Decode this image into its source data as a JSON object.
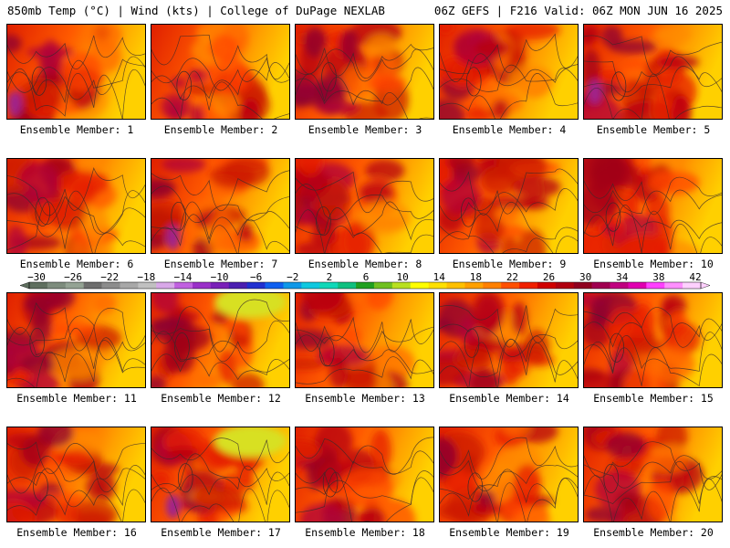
{
  "header": {
    "left": "850mb Temp (°C) | Wind (kts) | College of DuPage NEXLAB",
    "right": "06Z GEFS | F216 Valid: 06Z MON JUN 16 2025"
  },
  "member_label_prefix": "Ensemble Member: ",
  "members": [
    1,
    2,
    3,
    4,
    5,
    6,
    7,
    8,
    9,
    10,
    11,
    12,
    13,
    14,
    15,
    16,
    17,
    18,
    19,
    20
  ],
  "colorbar": {
    "tick_labels": [
      "−30",
      "−26",
      "−22",
      "−18",
      "−14",
      "−10",
      "−6",
      "−2",
      "2",
      "6",
      "10",
      "14",
      "18",
      "22",
      "26",
      "30",
      "34",
      "38",
      "42"
    ],
    "tick_values": [
      -30,
      -26,
      -22,
      -18,
      -14,
      -10,
      -6,
      -2,
      2,
      6,
      10,
      14,
      18,
      22,
      26,
      30,
      34,
      38,
      42
    ],
    "colors": [
      "#5f6f5f",
      "#7d8c7d",
      "#94a394",
      "#6e6e6e",
      "#8c8c8c",
      "#a8a8a8",
      "#c0c0c0",
      "#d8a8e8",
      "#c060e0",
      "#9a30c8",
      "#7a20b8",
      "#4b1fb0",
      "#2030d0",
      "#1060f0",
      "#1098e8",
      "#10c8e0",
      "#10d8b8",
      "#10c080",
      "#20a020",
      "#70c020",
      "#b8e020",
      "#ffff00",
      "#ffe000",
      "#ffc000",
      "#ffa000",
      "#ff8000",
      "#ff5000",
      "#f02000",
      "#d00000",
      "#b00010",
      "#900020",
      "#a00050",
      "#c00080",
      "#e000b0",
      "#ff40ff",
      "#ff90ff",
      "#ffd0ff"
    ]
  }
}
